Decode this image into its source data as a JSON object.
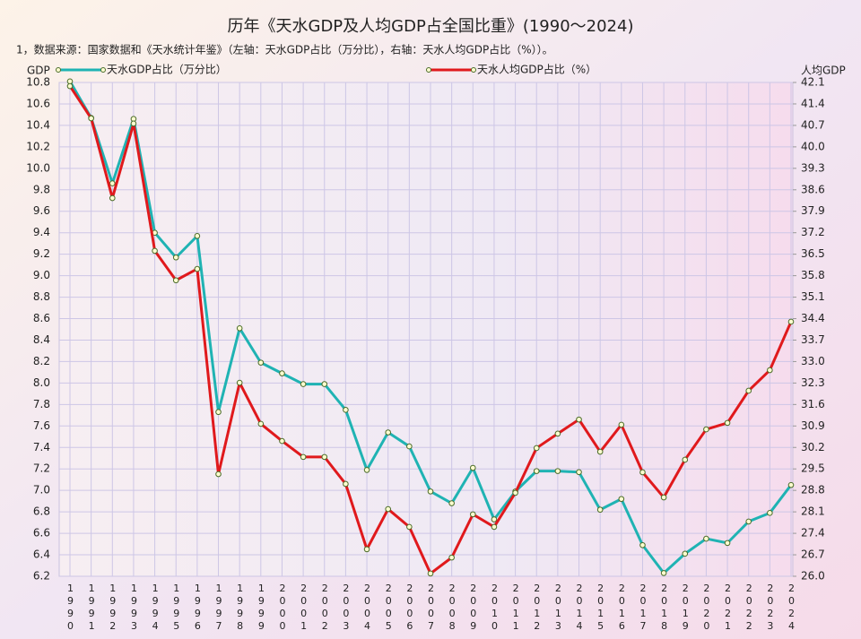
{
  "chart_data": {
    "type": "line",
    "title": "历年《天水GDP及人均GDP占全国比重》(1990～2024)",
    "subtitle": "1，数据来源：国家数据和《天水统计年鉴》（左轴：天水GDP占比（万分比），右轴：天水人均GDP占比（%））。",
    "ylabel": "GDP",
    "y2label": "人均GDP",
    "categories": [
      "1990",
      "1991",
      "1992",
      "1993",
      "1994",
      "1995",
      "1996",
      "1997",
      "1998",
      "1999",
      "2000",
      "2001",
      "2002",
      "2003",
      "2004",
      "2005",
      "2006",
      "2007",
      "2008",
      "2009",
      "2010",
      "2011",
      "2012",
      "2013",
      "2014",
      "2015",
      "2016",
      "2017",
      "2018",
      "2019",
      "2020",
      "2021",
      "2022",
      "2023",
      "2024"
    ],
    "series": [
      {
        "name": "天水GDP占比（万分比）",
        "color": "#1fb3b3",
        "values": [
          10.81,
          10.47,
          9.86,
          10.46,
          9.4,
          9.17,
          9.37,
          7.73,
          8.51,
          8.19,
          8.09,
          7.99,
          7.99,
          7.75,
          7.19,
          7.54,
          7.41,
          6.99,
          6.88,
          7.21,
          6.73,
          6.99,
          7.18,
          7.18,
          7.17,
          6.82,
          6.92,
          6.49,
          6.23,
          6.41,
          6.55,
          6.51,
          6.71,
          6.79,
          7.05
        ]
      },
      {
        "name": "天水人均GDP占比（%）",
        "color": "#e0191c",
        "axis": "y2",
        "values": [
          41.98,
          40.93,
          38.33,
          40.76,
          36.61,
          35.65,
          36.02,
          29.33,
          32.31,
          30.97,
          30.41,
          29.89,
          29.89,
          29.01,
          26.88,
          28.19,
          27.61,
          26.09,
          26.61,
          28.02,
          27.61,
          28.72,
          30.18,
          30.65,
          31.11,
          30.06,
          30.94,
          29.39,
          28.57,
          29.8,
          30.79,
          31.0,
          32.05,
          32.72,
          34.3
        ]
      }
    ],
    "ylim": [
      6.2,
      10.8
    ],
    "yticks": [
      10.8,
      10.6,
      10.4,
      10.2,
      {
        "value": 10,
        "label": "10.0"
      },
      9.8,
      9.6,
      9.4,
      9.2,
      {
        "value": 9,
        "label": "9.0"
      },
      8.8,
      8.6,
      8.4,
      8.2,
      {
        "value": 8,
        "label": "8.0"
      },
      7.8,
      7.6,
      7.4,
      7.2,
      {
        "value": 7,
        "label": "7.0"
      },
      6.8,
      6.6,
      6.4,
      6.2
    ],
    "y2lim": [
      26.0,
      42.1
    ],
    "y2ticks": [
      42.1,
      41.4,
      40.7,
      {
        "value": 40,
        "label": "40.0"
      },
      39.3,
      38.6,
      37.9,
      37.2,
      36.5,
      35.8,
      35.1,
      34.4,
      33.7,
      {
        "value": 33,
        "label": "33.0"
      },
      32.3,
      31.6,
      30.9,
      30.2,
      29.5,
      28.8,
      28.1,
      27.4,
      26.7,
      {
        "value": 26,
        "label": "26.0"
      }
    ],
    "grid": true
  }
}
